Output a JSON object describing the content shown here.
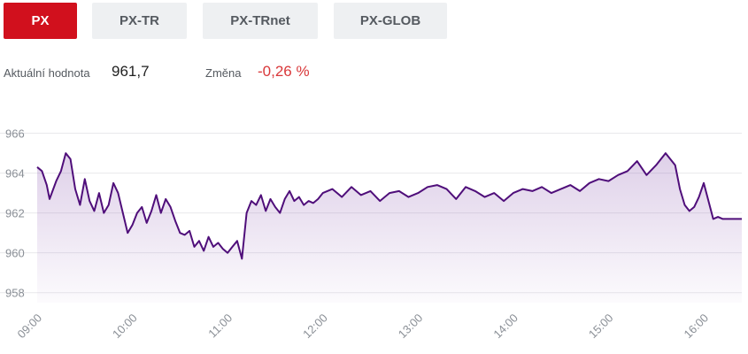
{
  "tabs": [
    {
      "label": "PX",
      "active": true
    },
    {
      "label": "PX-TR",
      "active": false
    },
    {
      "label": "PX-TRnet",
      "active": false
    },
    {
      "label": "PX-GLOB",
      "active": false
    }
  ],
  "info": {
    "current_label": "Aktuální hodnota",
    "current_value": "961,7",
    "change_label": "Změna",
    "change_value": "-0,26 %"
  },
  "colors": {
    "accent": "#d1101d",
    "line": "#4f0e7a",
    "negative": "#d9383a",
    "tab_bg": "#eef0f2"
  },
  "chart_data": {
    "type": "area",
    "title": "",
    "xlabel": "",
    "ylabel": "",
    "x_ticks": [
      "09:00",
      "10:00",
      "11:00",
      "12:00",
      "13:00",
      "14:00",
      "15:00",
      "16:00"
    ],
    "y_ticks": [
      966,
      964,
      962,
      960,
      958
    ],
    "ylim": [
      957.5,
      967.0
    ],
    "xlim_hours": [
      9.0,
      16.4
    ],
    "grid": true,
    "series": [
      {
        "x": [
          9.0,
          9.05,
          9.1,
          9.13,
          9.2,
          9.25,
          9.3,
          9.35,
          9.4,
          9.45,
          9.5,
          9.55,
          9.6,
          9.65,
          9.7,
          9.75,
          9.8,
          9.85,
          9.9,
          9.95,
          10.0,
          10.05,
          10.1,
          10.15,
          10.2,
          10.25,
          10.3,
          10.35,
          10.4,
          10.45,
          10.5,
          10.55,
          10.6,
          10.65,
          10.7,
          10.75,
          10.8,
          10.85,
          10.9,
          10.95,
          11.0,
          11.05,
          11.1,
          11.15,
          11.2,
          11.25,
          11.3,
          11.35,
          11.4,
          11.45,
          11.5,
          11.55,
          11.6,
          11.65,
          11.7,
          11.75,
          11.8,
          11.85,
          11.9,
          11.95,
          12.0,
          12.1,
          12.2,
          12.3,
          12.4,
          12.5,
          12.6,
          12.7,
          12.8,
          12.9,
          13.0,
          13.1,
          13.2,
          13.3,
          13.4,
          13.5,
          13.6,
          13.7,
          13.8,
          13.9,
          14.0,
          14.1,
          14.2,
          14.3,
          14.4,
          14.5,
          14.6,
          14.7,
          14.8,
          14.9,
          15.0,
          15.1,
          15.2,
          15.3,
          15.4,
          15.5,
          15.6,
          15.7,
          15.75,
          15.8,
          15.85,
          15.9,
          15.95,
          16.0,
          16.1,
          16.15,
          16.2,
          16.25,
          16.3,
          16.4
        ],
        "values": [
          964.3,
          964.1,
          963.4,
          962.7,
          963.6,
          964.1,
          965.0,
          964.7,
          963.2,
          962.4,
          963.7,
          962.6,
          962.1,
          963.0,
          962.0,
          962.4,
          963.5,
          963.0,
          962.0,
          961.0,
          961.4,
          962.0,
          962.3,
          961.5,
          962.1,
          962.9,
          962.0,
          962.7,
          962.3,
          961.6,
          961.0,
          960.9,
          961.1,
          960.3,
          960.6,
          960.1,
          960.8,
          960.3,
          960.5,
          960.2,
          960.0,
          960.3,
          960.6,
          959.7,
          962.0,
          962.6,
          962.4,
          962.9,
          962.1,
          962.7,
          962.3,
          962.0,
          962.7,
          963.1,
          962.6,
          962.8,
          962.4,
          962.6,
          962.5,
          962.7,
          963.0,
          963.2,
          962.8,
          963.3,
          962.9,
          963.1,
          962.6,
          963.0,
          963.1,
          962.8,
          963.0,
          963.3,
          963.4,
          963.2,
          962.7,
          963.3,
          963.1,
          962.8,
          963.0,
          962.6,
          963.0,
          963.2,
          963.1,
          963.3,
          963.0,
          963.2,
          963.4,
          963.1,
          963.5,
          963.7,
          963.6,
          963.9,
          964.1,
          964.6,
          963.9,
          964.4,
          965.0,
          964.4,
          963.2,
          962.4,
          962.1,
          962.3,
          962.8,
          963.5,
          961.7,
          961.8,
          961.7,
          961.7,
          961.7,
          961.7
        ]
      }
    ]
  }
}
